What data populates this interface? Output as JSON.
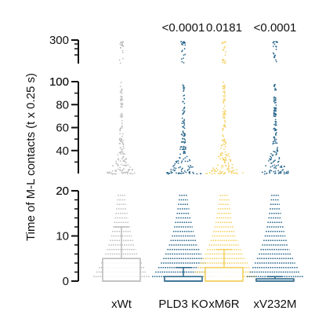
{
  "chart_data": {
    "type": "scatter",
    "subtype": "segmented-axis dot plot with box plot",
    "ylabel": "Time of M-L contacts (t x 0.25 s)",
    "categories": [
      "xWt",
      "PLD3 KO",
      "xM6R",
      "xV232M"
    ],
    "p_values": [
      "<0.0001",
      "0.0181",
      "<0.0001"
    ],
    "p_value_for_categories": [
      "PLD3 KO",
      "xM6R",
      "xV232M"
    ],
    "y_segments": [
      {
        "range": [
          0,
          20
        ],
        "ticks": [
          0,
          10,
          20
        ]
      },
      {
        "range": [
          20,
          100
        ],
        "ticks": [
          20,
          40,
          60,
          80,
          100
        ]
      },
      {
        "range": [
          100,
          300
        ],
        "ticks": [
          100,
          300
        ]
      }
    ],
    "colors": {
      "xWt": "#bdbdbd",
      "PLD3 KO": "#2e6a8e",
      "xM6R": "#f3d060",
      "xV232M": "#2e6a8e"
    },
    "box": [
      {
        "category": "xWt",
        "q1": 0,
        "median": 0,
        "q3": 5,
        "whisker_high": 12
      },
      {
        "category": "PLD3 KO",
        "q1": 0,
        "median": 0,
        "q3": 1,
        "whisker_high": 3
      },
      {
        "category": "xM6R",
        "q1": 0,
        "median": 0,
        "q3": 3,
        "whisker_high": 7
      },
      {
        "category": "xV232M",
        "q1": 0,
        "median": 0,
        "q3": 0.5,
        "whisker_high": 1
      }
    ],
    "dot_max_width": [
      {
        "category": "xWt",
        "low_max_per_unit": 36,
        "mid_max": 18
      },
      {
        "category": "PLD3 KO",
        "low_max_per_unit": 40,
        "mid_max": 22
      },
      {
        "category": "xM6R",
        "low_max_per_unit": 42,
        "mid_max": 24
      },
      {
        "category": "xV232M",
        "low_max_per_unit": 36,
        "mid_max": 20
      }
    ]
  }
}
